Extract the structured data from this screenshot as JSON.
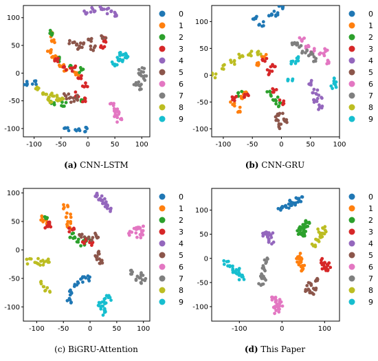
{
  "colors": [
    "#1f77b4",
    "#ff7f0e",
    "#2ca02c",
    "#d62728",
    "#9467bd",
    "#8c564b",
    "#e377c2",
    "#7f7f7f",
    "#bcbd22",
    "#17becf"
  ],
  "chart_data": [
    {
      "type": "scatter",
      "caption_letter": "(a)",
      "caption_bold": true,
      "caption_text": "CNN-LSTM",
      "xlim": [
        -120,
        115
      ],
      "ylim": [
        -115,
        122
      ],
      "xticks": [
        -100,
        -50,
        0,
        50,
        100
      ],
      "yticks": [
        -100,
        -50,
        0,
        50,
        100
      ],
      "legend": [
        "0",
        "1",
        "2",
        "3",
        "4",
        "5",
        "6",
        "7",
        "8",
        "9"
      ],
      "clusters": [
        {
          "c": 0,
          "pts": [
            [
              -115,
              -17
            ],
            [
              -100,
              -17
            ],
            [
              -40,
              -100
            ],
            [
              -20,
              -104
            ],
            [
              -5,
              -102
            ]
          ]
        },
        {
          "c": 1,
          "pts": [
            [
              -68,
              70
            ],
            [
              -65,
              55
            ],
            [
              -70,
              40
            ],
            [
              -62,
              30
            ],
            [
              -50,
              15
            ],
            [
              -40,
              8
            ],
            [
              -20,
              0
            ]
          ]
        },
        {
          "c": 2,
          "pts": [
            [
              -68,
              72
            ],
            [
              -55,
              25
            ],
            [
              -30,
              12
            ],
            [
              -12,
              5
            ],
            [
              -65,
              -55
            ],
            [
              -45,
              -55
            ],
            [
              -10,
              -48
            ]
          ]
        },
        {
          "c": 3,
          "pts": [
            [
              -58,
              22
            ],
            [
              -45,
              10
            ],
            [
              -28,
              8
            ],
            [
              -15,
              -5
            ],
            [
              -5,
              -22
            ],
            [
              -20,
              -38
            ],
            [
              -8,
              -48
            ],
            [
              28,
              45
            ],
            [
              32,
              60
            ]
          ]
        },
        {
          "c": 4,
          "pts": [
            [
              -5,
              108
            ],
            [
              10,
              115
            ],
            [
              25,
              117
            ],
            [
              40,
              112
            ],
            [
              48,
              106
            ]
          ]
        },
        {
          "c": 5,
          "pts": [
            [
              -30,
              55
            ],
            [
              -20,
              48
            ],
            [
              -10,
              50
            ],
            [
              5,
              58
            ],
            [
              10,
              45
            ],
            [
              30,
              65
            ],
            [
              -40,
              -42
            ],
            [
              -30,
              -48
            ],
            [
              -20,
              -45
            ]
          ]
        },
        {
          "c": 6,
          "pts": [
            [
              45,
              -55
            ],
            [
              50,
              -65
            ],
            [
              53,
              -75
            ],
            [
              58,
              -85
            ],
            [
              55,
              -70
            ]
          ]
        },
        {
          "c": 7,
          "pts": [
            [
              95,
              -5
            ],
            [
              100,
              5
            ],
            [
              105,
              -10
            ],
            [
              98,
              -25
            ],
            [
              90,
              -18
            ]
          ]
        },
        {
          "c": 8,
          "pts": [
            [
              -95,
              -30
            ],
            [
              -80,
              -35
            ],
            [
              -70,
              -40
            ],
            [
              -60,
              -45
            ],
            [
              -50,
              -48
            ],
            [
              -72,
              -50
            ]
          ]
        },
        {
          "c": 9,
          "pts": [
            [
              50,
              18
            ],
            [
              55,
              28
            ],
            [
              62,
              35
            ],
            [
              70,
              32
            ],
            [
              60,
              25
            ]
          ]
        }
      ]
    },
    {
      "type": "scatter",
      "caption_letter": "(b)",
      "caption_bold": true,
      "caption_text": "CNN-GRU",
      "xlim": [
        -120,
        100
      ],
      "ylim": [
        -115,
        130
      ],
      "xticks": [
        -100,
        -50,
        0,
        50,
        100
      ],
      "yticks": [
        -100,
        -50,
        0,
        50,
        100
      ],
      "legend": [
        "0",
        "1",
        "2",
        "3",
        "4",
        "5",
        "6",
        "7",
        "8",
        "9"
      ],
      "clusters": [
        {
          "c": 0,
          "pts": [
            [
              -45,
              105
            ],
            [
              -35,
              95
            ],
            [
              -20,
              110
            ],
            [
              -10,
              115
            ],
            [
              0,
              125
            ]
          ]
        },
        {
          "c": 1,
          "pts": [
            [
              -85,
              -55
            ],
            [
              -75,
              -65
            ],
            [
              -65,
              -40
            ],
            [
              -60,
              -35
            ],
            [
              -40,
              20
            ],
            [
              -30,
              35
            ]
          ]
        },
        {
          "c": 2,
          "pts": [
            [
              -70,
              -35
            ],
            [
              -10,
              -45
            ],
            [
              -5,
              -55
            ],
            [
              -20,
              -35
            ]
          ]
        },
        {
          "c": 3,
          "pts": [
            [
              -80,
              -45
            ],
            [
              -60,
              -38
            ],
            [
              -20,
              5
            ],
            [
              -15,
              15
            ],
            [
              -30,
              30
            ],
            [
              -12,
              -30
            ],
            [
              0,
              -50
            ]
          ]
        },
        {
          "c": 4,
          "pts": [
            [
              50,
              -15
            ],
            [
              58,
              -30
            ],
            [
              60,
              -50
            ],
            [
              68,
              -60
            ],
            [
              65,
              -40
            ]
          ]
        },
        {
          "c": 5,
          "pts": [
            [
              -10,
              -80
            ],
            [
              -5,
              -95
            ],
            [
              5,
              -85
            ],
            [
              -2,
              -70
            ]
          ]
        },
        {
          "c": 6,
          "pts": [
            [
              35,
              65
            ],
            [
              45,
              55
            ],
            [
              55,
              45
            ],
            [
              70,
              40
            ],
            [
              80,
              25
            ],
            [
              75,
              45
            ]
          ]
        },
        {
          "c": 7,
          "pts": [
            [
              20,
              60
            ],
            [
              30,
              55
            ],
            [
              40,
              45
            ],
            [
              50,
              40
            ],
            [
              60,
              30
            ]
          ]
        },
        {
          "c": 8,
          "pts": [
            [
              -115,
              0
            ],
            [
              -100,
              15
            ],
            [
              -85,
              25
            ],
            [
              -70,
              35
            ],
            [
              -55,
              40
            ],
            [
              -40,
              40
            ]
          ]
        },
        {
          "c": 9,
          "pts": [
            [
              20,
              25
            ],
            [
              25,
              30
            ],
            [
              15,
              -10
            ],
            [
              90,
              -20
            ],
            [
              95,
              -10
            ]
          ]
        }
      ]
    },
    {
      "type": "scatter",
      "caption_letter": "(c)",
      "caption_bold": false,
      "caption_text": "BiGRU-Attention",
      "xlim": [
        -125,
        112
      ],
      "ylim": [
        -125,
        108
      ],
      "xticks": [
        -100,
        -50,
        0,
        50,
        100
      ],
      "yticks": [
        -100,
        -50,
        0,
        50,
        100
      ],
      "legend": [
        "0",
        "1",
        "2",
        "3",
        "4",
        "5",
        "6",
        "7",
        "8",
        "9"
      ],
      "clusters": [
        {
          "c": 0,
          "pts": [
            [
              -40,
              -90
            ],
            [
              -35,
              -75
            ],
            [
              -25,
              -60
            ],
            [
              -15,
              -52
            ],
            [
              -5,
              -50
            ]
          ]
        },
        {
          "c": 1,
          "pts": [
            [
              -90,
              55
            ],
            [
              -85,
              50
            ],
            [
              -45,
              75
            ],
            [
              -40,
              60
            ],
            [
              -38,
              45
            ],
            [
              -40,
              40
            ]
          ]
        },
        {
          "c": 2,
          "pts": [
            [
              -80,
              55
            ],
            [
              -35,
              25
            ],
            [
              -25,
              18
            ],
            [
              -15,
              12
            ],
            [
              -5,
              20
            ]
          ]
        },
        {
          "c": 3,
          "pts": [
            [
              -80,
              40
            ],
            [
              -75,
              45
            ],
            [
              -35,
              35
            ],
            [
              -10,
              15
            ],
            [
              0,
              10
            ]
          ]
        },
        {
          "c": 4,
          "pts": [
            [
              10,
              95
            ],
            [
              20,
              90
            ],
            [
              30,
              80
            ],
            [
              35,
              70
            ],
            [
              25,
              85
            ]
          ]
        },
        {
          "c": 5,
          "pts": [
            [
              -15,
              25
            ],
            [
              0,
              20
            ],
            [
              10,
              25
            ],
            [
              15,
              -5
            ],
            [
              20,
              -20
            ],
            [
              15,
              -15
            ]
          ]
        },
        {
          "c": 6,
          "pts": [
            [
              75,
              30
            ],
            [
              85,
              35
            ],
            [
              95,
              40
            ],
            [
              100,
              30
            ],
            [
              90,
              25
            ]
          ]
        },
        {
          "c": 7,
          "pts": [
            [
              80,
              -40
            ],
            [
              90,
              -50
            ],
            [
              100,
              -55
            ],
            [
              95,
              -45
            ]
          ]
        },
        {
          "c": 8,
          "pts": [
            [
              -115,
              -20
            ],
            [
              -100,
              -20
            ],
            [
              -90,
              -22
            ],
            [
              -80,
              -20
            ],
            [
              -90,
              -60
            ],
            [
              -80,
              -70
            ]
          ]
        },
        {
          "c": 9,
          "pts": [
            [
              20,
              -95
            ],
            [
              25,
              -110
            ],
            [
              30,
              -90
            ],
            [
              35,
              -85
            ],
            [
              25,
              -100
            ]
          ]
        }
      ]
    },
    {
      "type": "scatter",
      "caption_letter": "(d)",
      "caption_bold": true,
      "caption_text": "This Paper",
      "xlim": [
        -165,
        135
      ],
      "ylim": [
        -130,
        145
      ],
      "xticks": [
        -100,
        0,
        100
      ],
      "yticks": [
        -100,
        -50,
        0,
        50,
        100
      ],
      "legend": [
        "0",
        "1",
        "2",
        "3",
        "4",
        "5",
        "6",
        "7",
        "8",
        "9"
      ],
      "clusters": [
        {
          "c": 0,
          "pts": [
            [
              -5,
              105
            ],
            [
              10,
              108
            ],
            [
              25,
              112
            ],
            [
              35,
              120
            ],
            [
              45,
              122
            ],
            [
              20,
              115
            ]
          ]
        },
        {
          "c": 1,
          "pts": [
            [
              40,
              5
            ],
            [
              45,
              -5
            ],
            [
              48,
              -15
            ],
            [
              52,
              -25
            ],
            [
              42,
              -10
            ]
          ]
        },
        {
          "c": 2,
          "pts": [
            [
              40,
              55
            ],
            [
              50,
              60
            ],
            [
              55,
              70
            ],
            [
              45,
              65
            ],
            [
              60,
              75
            ],
            [
              48,
              50
            ]
          ]
        },
        {
          "c": 3,
          "pts": [
            [
              95,
              -5
            ],
            [
              100,
              -10
            ],
            [
              110,
              -15
            ],
            [
              105,
              -25
            ],
            [
              100,
              -20
            ]
          ]
        },
        {
          "c": 4,
          "pts": [
            [
              -40,
              50
            ],
            [
              -30,
              45
            ],
            [
              -25,
              35
            ],
            [
              -35,
              55
            ],
            [
              -28,
              48
            ]
          ]
        },
        {
          "c": 5,
          "pts": [
            [
              60,
              -65
            ],
            [
              75,
              -60
            ],
            [
              80,
              -45
            ],
            [
              70,
              -70
            ],
            [
              65,
              -55
            ]
          ]
        },
        {
          "c": 6,
          "pts": [
            [
              -20,
              -85
            ],
            [
              -10,
              -90
            ],
            [
              -15,
              -100
            ],
            [
              -5,
              -95
            ],
            [
              -12,
              -110
            ]
          ]
        },
        {
          "c": 7,
          "pts": [
            [
              -50,
              -50
            ],
            [
              -45,
              -35
            ],
            [
              -40,
              -20
            ],
            [
              -35,
              -5
            ],
            [
              -42,
              -40
            ]
          ]
        },
        {
          "c": 8,
          "pts": [
            [
              75,
              30
            ],
            [
              85,
              40
            ],
            [
              90,
              55
            ],
            [
              100,
              60
            ],
            [
              95,
              50
            ]
          ]
        },
        {
          "c": 9,
          "pts": [
            [
              -130,
              -10
            ],
            [
              -120,
              -20
            ],
            [
              -110,
              -25
            ],
            [
              -100,
              -30
            ],
            [
              -95,
              -40
            ],
            [
              -105,
              -25
            ]
          ]
        }
      ]
    }
  ]
}
